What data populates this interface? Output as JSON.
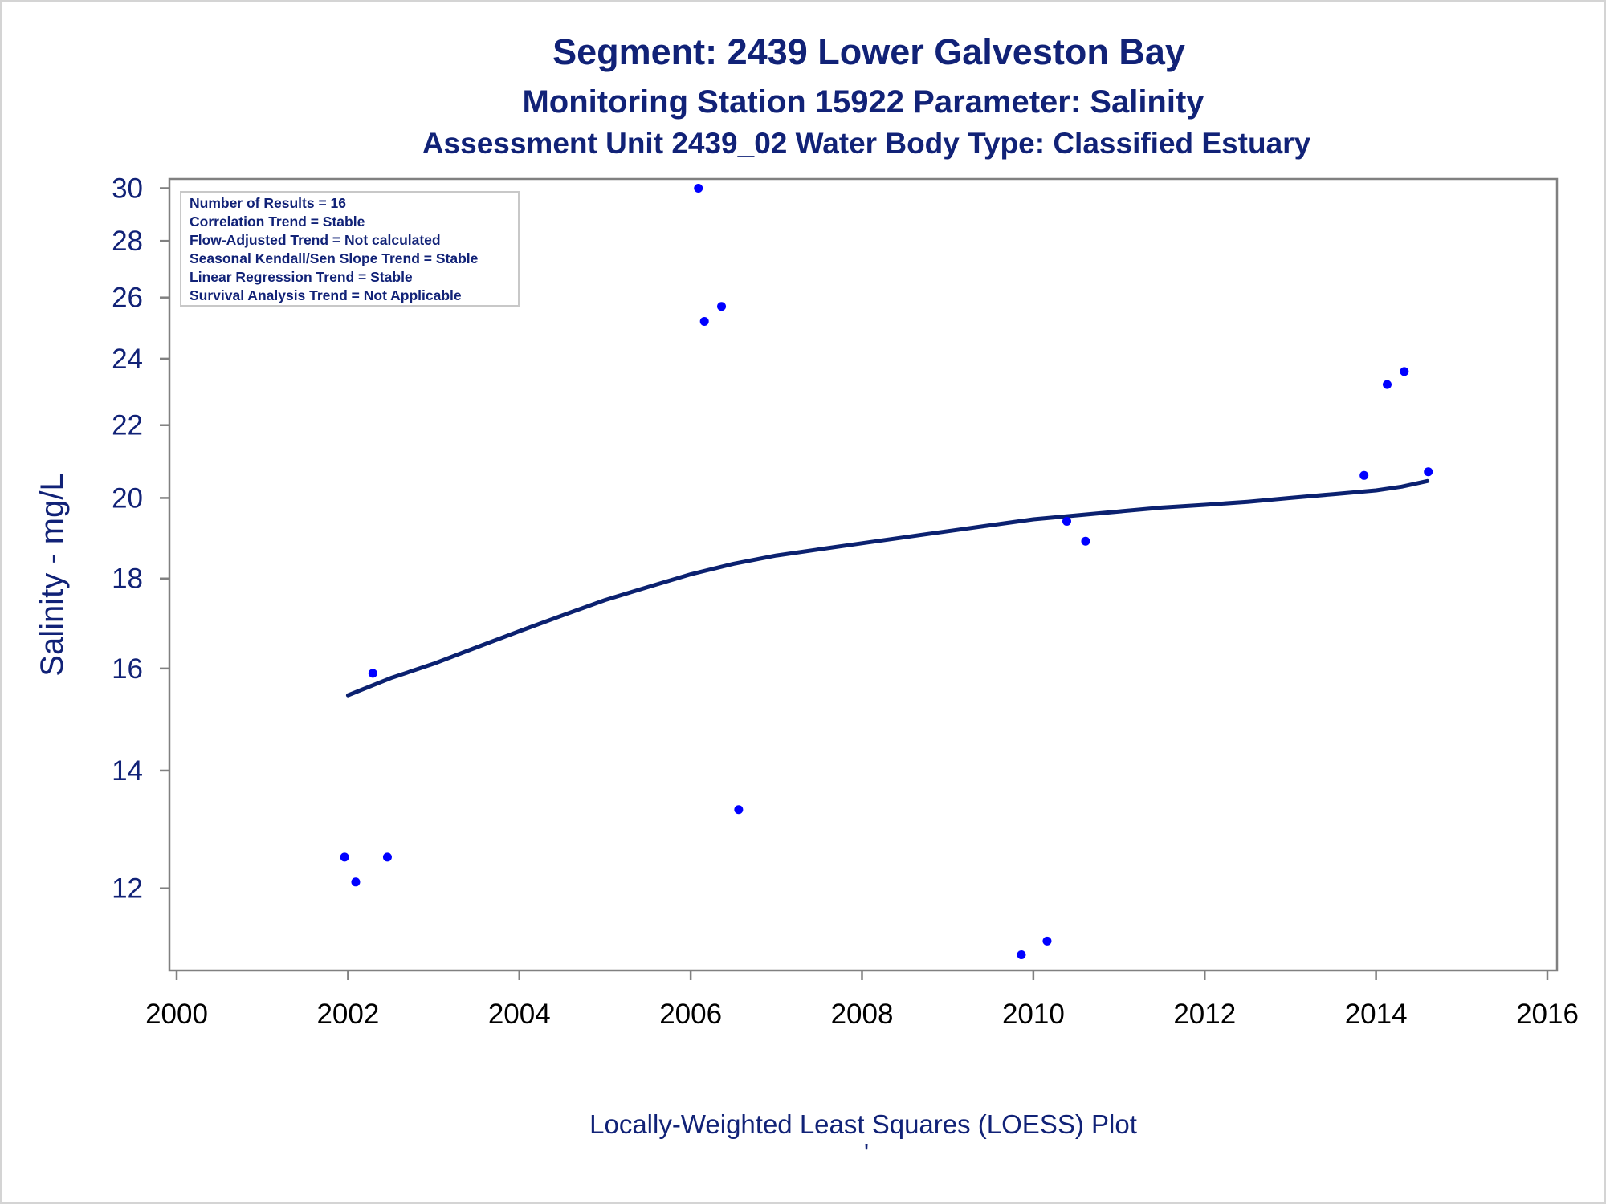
{
  "chart_data": {
    "type": "scatter",
    "title": "Segment: 2439  Lower Galveston Bay",
    "subtitle": "Monitoring Station 15922 Parameter: Salinity",
    "subtitle2": "Assessment Unit 2439_02   Water Body Type: Classified Estuary",
    "ylabel": "Salinity - mg/L",
    "xlabel": "",
    "footnote": "Locally-Weighted Least Squares (LOESS) Plot",
    "footnote_mark": "'",
    "x_scale": "linear",
    "y_scale": "log",
    "xlim": [
      2000,
      2016
    ],
    "ylim": [
      10.8,
      30.3
    ],
    "x_ticks": [
      "2000",
      "2002",
      "2004",
      "2006",
      "2008",
      "2010",
      "2012",
      "2014",
      "2016"
    ],
    "y_ticks": [
      "12",
      "14",
      "16",
      "18",
      "20",
      "22",
      "24",
      "26",
      "28",
      "30"
    ],
    "grid": false,
    "stats_box": {
      "placement": "top-left",
      "lines": [
        "Number of Results = 16",
        "Correlation Trend = Stable",
        "Flow-Adjusted Trend = Not calculated",
        "Seasonal Kendall/Sen Slope Trend = Stable",
        "Linear Regression Trend = Stable",
        "Survival Analysis Trend = Not Applicable"
      ]
    },
    "series": [
      {
        "kind": "points",
        "x": [
          2001.96,
          2002.09,
          2002.29,
          2002.46,
          2006.09,
          2006.16,
          2006.36,
          2006.56,
          2009.86,
          2010.16,
          2010.39,
          2010.61,
          2013.86,
          2014.13,
          2014.33,
          2014.61
        ],
        "y": [
          12.5,
          12.1,
          15.9,
          12.5,
          30.0,
          25.2,
          25.7,
          13.3,
          11.0,
          11.2,
          19.4,
          18.9,
          20.6,
          23.2,
          23.6,
          20.7
        ]
      },
      {
        "kind": "loess",
        "x": [
          2002.0,
          2002.5,
          2003.0,
          2003.5,
          2004.0,
          2004.5,
          2005.0,
          2005.5,
          2006.0,
          2006.5,
          2007.0,
          2007.5,
          2008.0,
          2008.5,
          2009.0,
          2009.5,
          2010.0,
          2010.5,
          2011.0,
          2011.5,
          2012.0,
          2012.5,
          2013.0,
          2013.5,
          2014.0,
          2014.3,
          2014.6
        ],
        "y": [
          15.45,
          15.8,
          16.1,
          16.45,
          16.8,
          17.15,
          17.5,
          17.8,
          18.1,
          18.35,
          18.55,
          18.7,
          18.85,
          19.0,
          19.15,
          19.3,
          19.45,
          19.55,
          19.65,
          19.75,
          19.82,
          19.9,
          20.0,
          20.1,
          20.2,
          20.3,
          20.45
        ]
      }
    ]
  },
  "colors": {
    "title": "#112277",
    "points": "#0000ff",
    "loess": "#0b2170",
    "axis": "#808080",
    "frame": "#d4d4d4"
  }
}
